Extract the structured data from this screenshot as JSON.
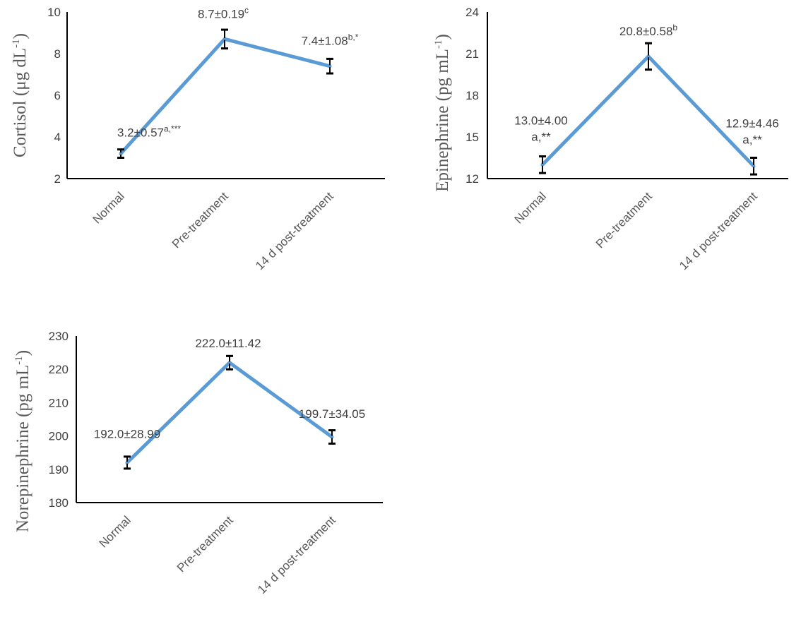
{
  "chart_data": [
    {
      "type": "line",
      "categories": [
        "Normal",
        "Pre-treatment",
        "14 d post-treatment"
      ],
      "ylabel": "Cortisol (μg dL⁻¹)",
      "ylabel_main": "Cortisol (μg dL",
      "ylabel_sup": "-1",
      "ylabel_tail": ")",
      "ylim": [
        2,
        10
      ],
      "yticks": [
        "2",
        "4",
        "6",
        "8",
        "10"
      ],
      "values": [
        3.2,
        8.7,
        7.4
      ],
      "error_bars": [
        0.2,
        0.45,
        0.35
      ],
      "data_labels": [
        {
          "text": "3.2±0.57",
          "sup": "a,***"
        },
        {
          "text": "8.7±0.19",
          "sup": "c"
        },
        {
          "text": "7.4±1.08",
          "sup": "b,*"
        }
      ],
      "color": "#5B9BD5"
    },
    {
      "type": "line",
      "categories": [
        "Normal",
        "Pre-treatment",
        "14 d post-treatment"
      ],
      "ylabel": "Epinephrine (pg mL⁻¹)",
      "ylabel_main": "Epinephrine  (pg mL",
      "ylabel_sup": "-1",
      "ylabel_tail": ")",
      "ylim": [
        12,
        24
      ],
      "yticks": [
        "12",
        "15",
        "18",
        "21",
        "24"
      ],
      "values": [
        13.0,
        20.8,
        12.9
      ],
      "error_bars": [
        0.6,
        0.95,
        0.6
      ],
      "data_labels": [
        {
          "text": "13.0±4.00",
          "sub": "a,**"
        },
        {
          "text": "20.8±0.58",
          "sup": "b"
        },
        {
          "text": "12.9±4.46",
          "sub": "a,**"
        }
      ],
      "color": "#5B9BD5"
    },
    {
      "type": "line",
      "categories": [
        "Normal",
        "Pre-treatment",
        "14 d post-treatment"
      ],
      "ylabel": "Norepinephrine (pg mL⁻¹)",
      "ylabel_main": "Norepinephrine  (pg mL",
      "ylabel_sup": "-1",
      "ylabel_tail": ")",
      "ylim": [
        180,
        230
      ],
      "yticks": [
        "180",
        "190",
        "200",
        "210",
        "220",
        "230"
      ],
      "values": [
        192.0,
        222.0,
        199.7
      ],
      "error_bars": [
        1.8,
        2.0,
        2.0
      ],
      "data_labels": [
        {
          "text": "192.0±28.99"
        },
        {
          "text": "222.0±11.42"
        },
        {
          "text": "199.7±34.05"
        }
      ],
      "color": "#5B9BD5"
    }
  ]
}
